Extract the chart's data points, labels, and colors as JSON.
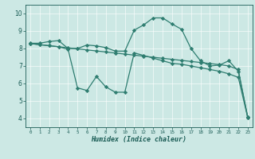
{
  "line1_x": [
    0,
    1,
    2,
    3,
    4,
    5,
    6,
    7,
    8,
    9,
    10,
    11,
    12,
    13,
    14,
    15,
    16,
    17,
    18,
    19,
    20,
    21,
    22,
    23
  ],
  "line1_y": [
    8.3,
    8.3,
    8.4,
    8.45,
    8.0,
    8.0,
    8.2,
    8.15,
    8.05,
    7.85,
    7.85,
    9.05,
    9.35,
    9.75,
    9.75,
    9.4,
    9.1,
    8.0,
    7.3,
    7.0,
    7.05,
    7.3,
    6.7,
    4.1
  ],
  "line2_x": [
    0,
    1,
    2,
    3,
    4,
    5,
    6,
    7,
    8,
    9,
    10,
    11,
    12,
    13,
    14,
    15,
    16,
    17,
    18,
    19,
    20,
    21,
    22,
    23
  ],
  "line2_y": [
    8.28,
    8.22,
    8.16,
    8.1,
    8.04,
    7.98,
    7.92,
    7.86,
    7.8,
    7.74,
    7.68,
    7.62,
    7.56,
    7.5,
    7.44,
    7.38,
    7.32,
    7.26,
    7.2,
    7.14,
    7.08,
    7.0,
    6.8,
    4.05
  ],
  "line3_x": [
    0,
    1,
    2,
    3,
    4,
    5,
    6,
    7,
    8,
    9,
    10,
    11,
    12,
    13,
    14,
    15,
    16,
    17,
    18,
    19,
    20,
    21,
    22,
    23
  ],
  "line3_y": [
    8.28,
    8.22,
    8.16,
    8.1,
    7.95,
    5.75,
    5.6,
    6.4,
    5.8,
    5.5,
    5.5,
    7.75,
    7.6,
    7.45,
    7.3,
    7.15,
    7.1,
    7.0,
    6.9,
    6.8,
    6.7,
    6.55,
    6.35,
    4.05
  ],
  "line_color": "#2e7d70",
  "bg_color": "#cce8e4",
  "grid_color": "#b8d8d4",
  "xlabel": "Humidex (Indice chaleur)",
  "xlim": [
    -0.5,
    23.5
  ],
  "ylim": [
    3.5,
    10.5
  ],
  "yticks": [
    4,
    5,
    6,
    7,
    8,
    9,
    10
  ],
  "xticks": [
    0,
    1,
    2,
    3,
    4,
    5,
    6,
    7,
    8,
    9,
    10,
    11,
    12,
    13,
    14,
    15,
    16,
    17,
    18,
    19,
    20,
    21,
    22,
    23
  ],
  "marker": "D",
  "markersize": 2.2,
  "linewidth": 0.9
}
